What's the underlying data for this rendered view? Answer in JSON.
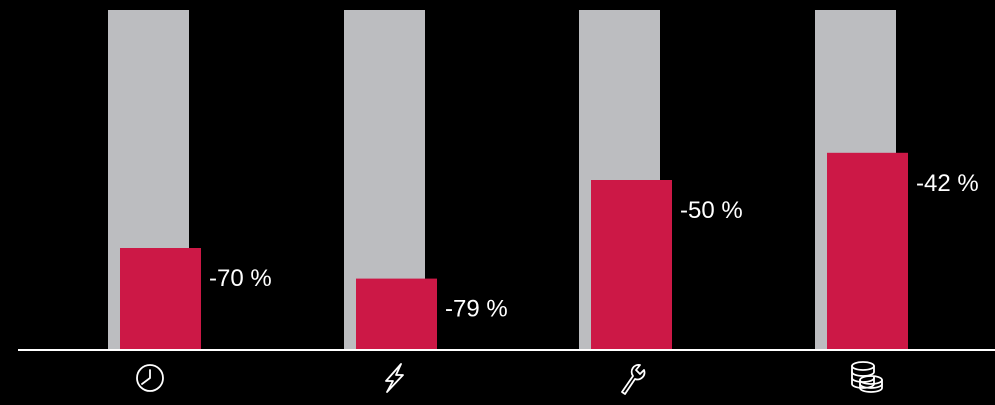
{
  "colors": {
    "background": "#000000",
    "baseline_bar": "#bcbdc0",
    "reduced_bar": "#cc1846",
    "text": "#ffffff",
    "axis": "#ffffff"
  },
  "chart_data": {
    "type": "bar",
    "categories": [
      "clock-icon",
      "lightning-icon",
      "wrench-icon",
      "coins-icon"
    ],
    "series": [
      {
        "values": [
          100,
          100,
          100,
          100
        ]
      },
      {
        "values": [
          30,
          21,
          50,
          58
        ]
      }
    ],
    "labels": [
      "-70 %",
      "-79 %",
      "-50 %",
      "-42 %"
    ],
    "ylim": [
      0,
      100
    ],
    "grid": false,
    "legend": "none"
  }
}
